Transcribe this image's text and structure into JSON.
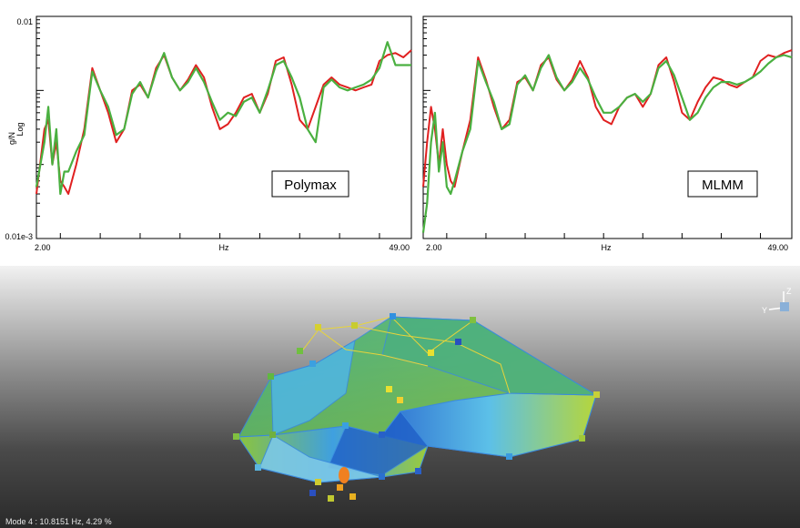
{
  "charts": [
    {
      "id": "polymax",
      "label": "Polymax",
      "ylabel_top": "g/N",
      "ylabel_bottom": "Log",
      "y_top_tick": "0.01",
      "y_bottom_tick": "0.01e-3",
      "x_left_tick": "2.00",
      "x_right_tick": "49.00",
      "xlabel": "Hz"
    },
    {
      "id": "mlmm",
      "label": "MLMM",
      "x_left_tick": "2.00",
      "x_right_tick": "49.00",
      "xlabel": "Hz"
    }
  ],
  "chart_data": [
    {
      "type": "line",
      "xlabel": "Hz",
      "ylabel": "g/N",
      "ylog": true,
      "xlim": [
        2.0,
        49.0
      ],
      "ylim": [
        1e-05,
        0.01
      ],
      "annotation": "Polymax",
      "series": [
        {
          "color": "#e02020",
          "x": [
            2,
            3,
            3.5,
            4,
            4.5,
            5,
            5.5,
            6,
            7,
            8,
            9,
            10,
            11,
            12,
            13,
            14,
            15,
            16,
            17,
            18,
            19,
            20,
            21,
            22,
            23,
            24,
            25,
            26,
            27,
            28,
            29,
            30,
            31,
            32,
            33,
            34,
            35,
            36,
            37,
            38,
            39,
            40,
            41,
            42,
            43,
            44,
            45,
            46,
            47,
            48,
            49
          ],
          "y": [
            4e-05,
            0.0003,
            0.0004,
            0.0001,
            0.0002,
            6e-05,
            5e-05,
            4e-05,
            0.0001,
            0.0003,
            0.002,
            0.001,
            0.0005,
            0.0002,
            0.0003,
            0.001,
            0.0012,
            0.0008,
            0.002,
            0.003,
            0.0015,
            0.001,
            0.0014,
            0.0022,
            0.0015,
            0.0006,
            0.0003,
            0.00035,
            0.0005,
            0.0008,
            0.0009,
            0.0005,
            0.0009,
            0.0025,
            0.0028,
            0.0012,
            0.0004,
            0.0003,
            0.0006,
            0.0012,
            0.0015,
            0.0012,
            0.0011,
            0.001,
            0.0011,
            0.0012,
            0.0025,
            0.003,
            0.0032,
            0.0028,
            0.0035
          ]
        },
        {
          "color": "#4ab040",
          "x": [
            2,
            3,
            3.5,
            4,
            4.5,
            5,
            5.5,
            6,
            7,
            8,
            9,
            10,
            11,
            12,
            13,
            14,
            15,
            16,
            17,
            18,
            19,
            20,
            21,
            22,
            23,
            24,
            25,
            26,
            27,
            28,
            29,
            30,
            31,
            32,
            33,
            34,
            35,
            36,
            37,
            38,
            39,
            40,
            41,
            42,
            43,
            44,
            45,
            46,
            47,
            48,
            49
          ],
          "y": [
            5e-05,
            0.0002,
            0.0006,
            0.0001,
            0.0003,
            4e-05,
            8e-05,
            8e-05,
            0.00015,
            0.00025,
            0.0018,
            0.001,
            0.0006,
            0.00025,
            0.0003,
            0.0009,
            0.0013,
            0.0008,
            0.0018,
            0.0032,
            0.0015,
            0.001,
            0.0013,
            0.002,
            0.0013,
            0.0007,
            0.0004,
            0.0005,
            0.00045,
            0.0007,
            0.0008,
            0.0005,
            0.001,
            0.0022,
            0.0025,
            0.0015,
            0.0008,
            0.0003,
            0.0002,
            0.0011,
            0.0014,
            0.0011,
            0.001,
            0.0011,
            0.0012,
            0.0014,
            0.002,
            0.0045,
            0.0022,
            0.0022,
            0.0022
          ]
        }
      ]
    },
    {
      "type": "line",
      "xlabel": "Hz",
      "ylog": true,
      "xlim": [
        2.0,
        49.0
      ],
      "ylim": [
        1e-05,
        0.01
      ],
      "annotation": "MLMM",
      "series": [
        {
          "color": "#e02020",
          "x": [
            2,
            2.5,
            3,
            3.5,
            4,
            4.5,
            5,
            5.5,
            6,
            7,
            8,
            9,
            10,
            11,
            12,
            13,
            14,
            15,
            16,
            17,
            18,
            19,
            20,
            21,
            22,
            23,
            24,
            25,
            26,
            27,
            28,
            29,
            30,
            31,
            32,
            33,
            34,
            35,
            36,
            37,
            38,
            39,
            40,
            41,
            42,
            43,
            44,
            45,
            46,
            47,
            48,
            49
          ],
          "y": [
            5e-05,
            0.0002,
            0.0006,
            0.0003,
            0.0001,
            0.0003,
            0.0001,
            6e-05,
            5e-05,
            0.00015,
            0.0004,
            0.0028,
            0.0014,
            0.0006,
            0.0003,
            0.0004,
            0.0013,
            0.0015,
            0.001,
            0.0022,
            0.0028,
            0.0014,
            0.001,
            0.0014,
            0.0025,
            0.0015,
            0.0006,
            0.0004,
            0.00035,
            0.0006,
            0.0008,
            0.0009,
            0.0006,
            0.0009,
            0.0022,
            0.0028,
            0.0013,
            0.0005,
            0.0004,
            0.0007,
            0.0011,
            0.0015,
            0.0014,
            0.0012,
            0.0011,
            0.0013,
            0.0015,
            0.0025,
            0.003,
            0.0028,
            0.0032,
            0.0035
          ]
        },
        {
          "color": "#4ab040",
          "x": [
            2,
            2.5,
            3,
            3.5,
            4,
            4.5,
            5,
            5.5,
            6,
            7,
            8,
            9,
            10,
            11,
            12,
            13,
            14,
            15,
            16,
            17,
            18,
            19,
            20,
            21,
            22,
            23,
            24,
            25,
            26,
            27,
            28,
            29,
            30,
            31,
            32,
            33,
            34,
            35,
            36,
            37,
            38,
            39,
            40,
            41,
            42,
            43,
            44,
            45,
            46,
            47,
            48,
            49
          ],
          "y": [
            1.2e-05,
            3e-05,
            0.0002,
            0.0005,
            8e-05,
            0.0002,
            5e-05,
            4e-05,
            6e-05,
            0.00015,
            0.0003,
            0.0025,
            0.0013,
            0.0007,
            0.0003,
            0.00035,
            0.0012,
            0.0016,
            0.001,
            0.002,
            0.003,
            0.0015,
            0.001,
            0.0013,
            0.002,
            0.0014,
            0.0008,
            0.0005,
            0.0005,
            0.0006,
            0.0008,
            0.0009,
            0.0007,
            0.0009,
            0.002,
            0.0025,
            0.0016,
            0.0008,
            0.0004,
            0.0005,
            0.0008,
            0.0011,
            0.0013,
            0.0013,
            0.0012,
            0.0013,
            0.0015,
            0.0018,
            0.0023,
            0.0028,
            0.003,
            0.0028
          ]
        }
      ]
    }
  ],
  "viewport": {
    "status": "Mode  4 : 10.8151 Hz, 4.29 %",
    "axis_z": "Z",
    "axis_y": "Y"
  }
}
